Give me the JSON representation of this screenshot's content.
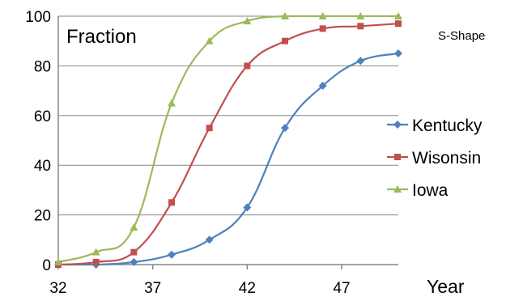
{
  "chart_data": {
    "type": "line",
    "title": "Fraction",
    "subtitle": "S-Shape",
    "xlabel": "Year",
    "ylabel": "",
    "xlim": [
      32,
      50
    ],
    "ylim": [
      0,
      100
    ],
    "xticks": [
      32,
      37,
      42,
      47
    ],
    "yticks": [
      0,
      20,
      40,
      60,
      80,
      100
    ],
    "grid": "horizontal",
    "legend": "right",
    "series": [
      {
        "name": "Kentucky",
        "color": "#4f81bd",
        "marker": "diamond",
        "points": [
          [
            32,
            0
          ],
          [
            34,
            0
          ],
          [
            36,
            1
          ],
          [
            38,
            4
          ],
          [
            40,
            10
          ],
          [
            42,
            23
          ],
          [
            44,
            55
          ],
          [
            46,
            72
          ],
          [
            48,
            82
          ],
          [
            50,
            85
          ]
        ]
      },
      {
        "name": "Wisonsin",
        "color": "#c0504d",
        "marker": "square",
        "points": [
          [
            32,
            0
          ],
          [
            34,
            1
          ],
          [
            36,
            5
          ],
          [
            38,
            25
          ],
          [
            40,
            55
          ],
          [
            42,
            80
          ],
          [
            44,
            90
          ],
          [
            46,
            95
          ],
          [
            48,
            96
          ],
          [
            50,
            97
          ]
        ]
      },
      {
        "name": "Iowa",
        "color": "#9bbb59",
        "marker": "triangle",
        "points": [
          [
            32,
            1
          ],
          [
            34,
            5
          ],
          [
            36,
            15
          ],
          [
            38,
            65
          ],
          [
            40,
            90
          ],
          [
            42,
            98
          ],
          [
            44,
            100
          ],
          [
            46,
            100
          ],
          [
            48,
            100
          ],
          [
            50,
            100
          ]
        ]
      }
    ]
  }
}
